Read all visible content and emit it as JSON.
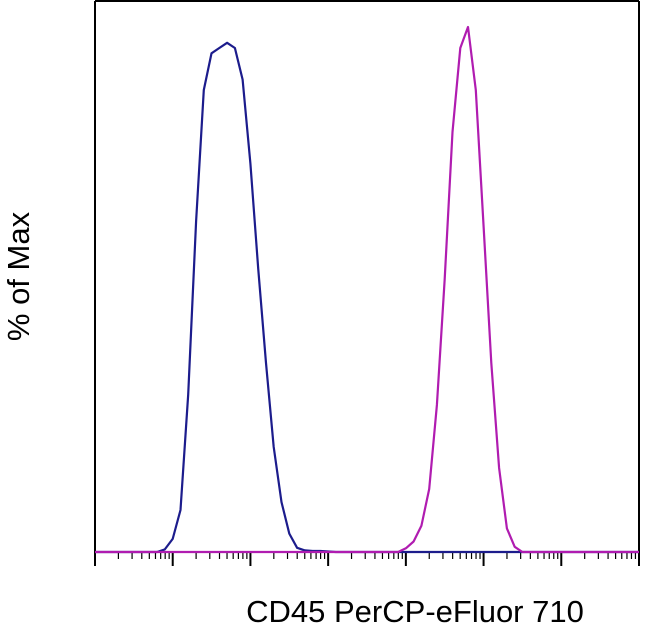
{
  "chart_data": {
    "type": "line",
    "subtype": "histogram-overlay",
    "title": "",
    "xlabel": "CD45 PerCP-eFluor 710",
    "ylabel": "% of Max",
    "x_scale": "log",
    "xlim": [
      10,
      100000000
    ],
    "ylim": [
      0,
      100
    ],
    "grid": false,
    "tick_labels_shown": false,
    "legend": "none",
    "series": [
      {
        "color": "#1c1c8c",
        "x": [
          63,
          79,
          100,
          126,
          158,
          200,
          251,
          316,
          398,
          501,
          631,
          794,
          1000,
          1259,
          1585,
          1995,
          2512,
          3162,
          3981,
          5012,
          6310,
          7943,
          10000,
          12589
        ],
        "y": [
          0,
          0.5,
          2.5,
          8,
          30,
          63,
          88,
          95,
          96,
          97,
          96,
          90,
          74,
          54,
          36,
          20,
          9.5,
          3.5,
          0.8,
          0.3,
          0.2,
          0.2,
          0.1,
          0
        ]
      },
      {
        "color": "#b01cb0",
        "x": [
          79433,
          100000,
          125893,
          158489,
          199526,
          251189,
          316228,
          398107,
          501187,
          630957,
          794328,
          1000000,
          1258925,
          1584893,
          1995262,
          2511886,
          3162278
        ],
        "y": [
          0,
          0.7,
          2,
          5,
          12,
          28,
          52,
          80,
          96,
          100,
          88,
          62,
          36,
          16,
          4.5,
          1,
          0
        ]
      }
    ]
  }
}
